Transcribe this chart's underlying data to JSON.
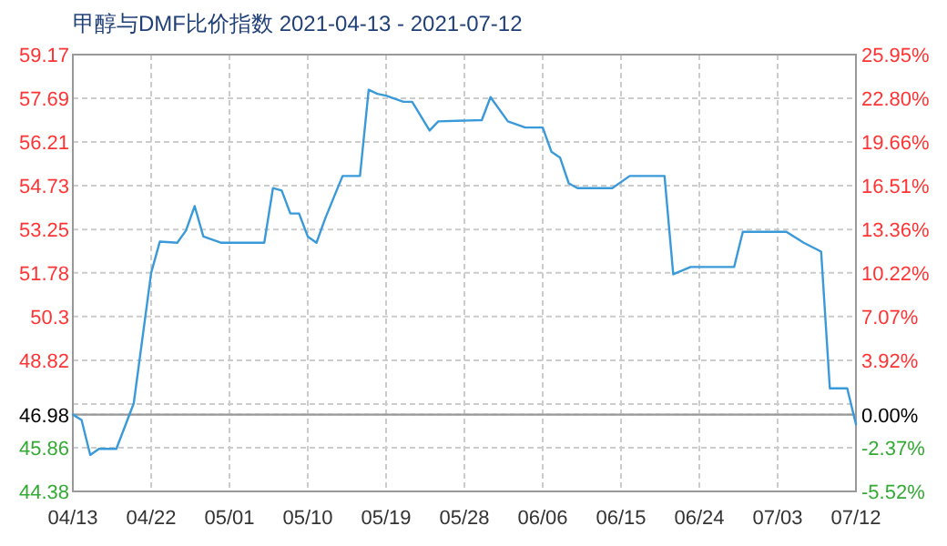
{
  "chart_data": {
    "type": "line",
    "title": "甲醇与DMF比价指数 2021-04-13 - 2021-07-12",
    "x": [
      "2021-04-13",
      "2021-04-14",
      "2021-04-15",
      "2021-04-16",
      "2021-04-18",
      "2021-04-20",
      "2021-04-22",
      "2021-04-23",
      "2021-04-25",
      "2021-04-26",
      "2021-04-27",
      "2021-04-28",
      "2021-04-30",
      "2021-05-05",
      "2021-05-06",
      "2021-05-07",
      "2021-05-08",
      "2021-05-09",
      "2021-05-10",
      "2021-05-11",
      "2021-05-12",
      "2021-05-14",
      "2021-05-16",
      "2021-05-17",
      "2021-05-18",
      "2021-05-19",
      "2021-05-21",
      "2021-05-22",
      "2021-05-24",
      "2021-05-25",
      "2021-05-30",
      "2021-05-31",
      "2021-06-02",
      "2021-06-04",
      "2021-06-06",
      "2021-06-07",
      "2021-06-08",
      "2021-06-09",
      "2021-06-10",
      "2021-06-14",
      "2021-06-16",
      "2021-06-20",
      "2021-06-21",
      "2021-06-23",
      "2021-06-28",
      "2021-06-29",
      "2021-07-04",
      "2021-07-06",
      "2021-07-08",
      "2021-07-09",
      "2021-07-11",
      "2021-07-12"
    ],
    "series": [
      {
        "color": "#3a9ad9",
        "values": [
          46.98,
          46.8,
          45.61,
          45.82,
          45.82,
          47.36,
          51.78,
          52.84,
          52.8,
          53.21,
          54.04,
          53.01,
          52.8,
          52.8,
          54.65,
          54.57,
          53.79,
          53.79,
          53.01,
          52.8,
          53.62,
          55.06,
          55.06,
          57.98,
          57.84,
          57.78,
          57.57,
          57.57,
          56.6,
          56.91,
          56.95,
          57.73,
          56.91,
          56.7,
          56.7,
          55.88,
          55.68,
          54.81,
          54.65,
          54.65,
          55.06,
          55.06,
          51.73,
          51.98,
          51.98,
          53.17,
          53.17,
          52.8,
          52.5,
          47.87,
          47.87,
          46.65
        ]
      }
    ],
    "xlim": [
      "2021-04-13",
      "2021-07-12"
    ],
    "xticks": [
      {
        "value": "2021-04-13",
        "label": "04/13"
      },
      {
        "value": "2021-04-22",
        "label": "04/22"
      },
      {
        "value": "2021-05-01",
        "label": "05/01"
      },
      {
        "value": "2021-05-10",
        "label": "05/10"
      },
      {
        "value": "2021-05-19",
        "label": "05/19"
      },
      {
        "value": "2021-05-28",
        "label": "05/28"
      },
      {
        "value": "2021-06-06",
        "label": "06/06"
      },
      {
        "value": "2021-06-15",
        "label": "06/15"
      },
      {
        "value": "2021-06-24",
        "label": "06/24"
      },
      {
        "value": "2021-07-03",
        "label": "07/03"
      },
      {
        "value": "2021-07-12",
        "label": "07/12"
      }
    ],
    "ylim": [
      44.38,
      59.17
    ],
    "yticks": [
      44.38,
      45.86,
      46.98,
      {
        "value": 47.34,
        "label": null
      },
      48.82,
      50.3,
      51.78,
      53.25,
      54.73,
      56.21,
      57.69,
      59.17
    ],
    "y2lim": [
      -5.52,
      25.95
    ],
    "y2ticks": [
      {
        "value": -5.52,
        "label": "-5.52%"
      },
      {
        "value": -2.37,
        "label": "-2.37%"
      },
      {
        "value": 0,
        "label": "0.00%"
      },
      {
        "value": 3.92,
        "label": "3.92%"
      },
      {
        "value": 7.07,
        "label": "7.07%"
      },
      {
        "value": 10.22,
        "label": "10.22%"
      },
      {
        "value": 13.36,
        "label": "13.36%"
      },
      {
        "value": 16.51,
        "label": "16.51%"
      },
      {
        "value": 19.66,
        "label": "19.66%"
      },
      {
        "value": 22.8,
        "label": "22.80%"
      },
      {
        "value": 25.95,
        "label": "25.95%"
      }
    ],
    "ref_lines": [
      {
        "axis": "y",
        "value": 46.98,
        "color": "#999999"
      }
    ],
    "grid": true
  }
}
